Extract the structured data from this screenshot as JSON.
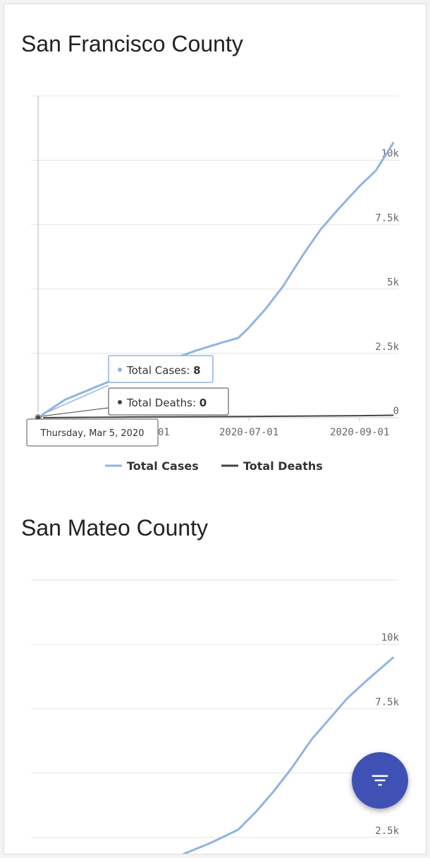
{
  "colors": {
    "cases": "#8fb4e3",
    "deaths": "#444444",
    "fab": "#3f51b5"
  },
  "fab": {
    "icon": "filter-icon"
  },
  "chart_data": [
    {
      "type": "line",
      "title": "San Francisco County",
      "x_ticks": [
        "2020-05-01",
        "2020-07-01",
        "2020-09-01"
      ],
      "y_ticks": [
        "0",
        "2.5k",
        "5k",
        "7.5k",
        "10k"
      ],
      "ylim": [
        0,
        12500
      ],
      "xlim": [
        "2020-03-01",
        "2020-09-23"
      ],
      "series": [
        {
          "name": "Total Cases",
          "x": [
            "2020-03-05",
            "2020-03-20",
            "2020-04-10",
            "2020-05-01",
            "2020-05-20",
            "2020-06-01",
            "2020-06-15",
            "2020-06-25",
            "2020-07-01",
            "2020-07-10",
            "2020-07-20",
            "2020-08-01",
            "2020-08-10",
            "2020-08-20",
            "2020-09-01",
            "2020-09-10",
            "2020-09-20"
          ],
          "values": [
            8,
            700,
            1300,
            1900,
            2300,
            2600,
            2900,
            3100,
            3500,
            4200,
            5100,
            6400,
            7300,
            8100,
            9000,
            9600,
            10700
          ]
        },
        {
          "name": "Total Deaths",
          "x": [
            "2020-03-05",
            "2020-05-01",
            "2020-07-01",
            "2020-09-01",
            "2020-09-20"
          ],
          "values": [
            0,
            30,
            50,
            80,
            95
          ]
        }
      ],
      "legend": "bottom",
      "tooltip": {
        "date": "Thursday, Mar 5, 2020",
        "cases": "Total Cases: ",
        "cases_value": "8",
        "deaths": "Total Deaths: ",
        "deaths_value": "0"
      }
    },
    {
      "type": "line",
      "title": "San Mateo County",
      "y_ticks": [
        "2.5k",
        "7.5k",
        "10k"
      ],
      "ylim": [
        0,
        12500
      ],
      "xlim": [
        "2020-03-01",
        "2020-09-23"
      ],
      "series": [
        {
          "x": [
            "2020-05-20",
            "2020-06-10",
            "2020-06-25",
            "2020-07-05",
            "2020-07-15",
            "2020-07-25",
            "2020-08-05",
            "2020-08-15",
            "2020-08-25",
            "2020-09-05",
            "2020-09-20"
          ],
          "values": [
            1700,
            2300,
            2800,
            3500,
            4300,
            5200,
            6300,
            7100,
            7900,
            8600,
            9500
          ]
        }
      ]
    }
  ]
}
